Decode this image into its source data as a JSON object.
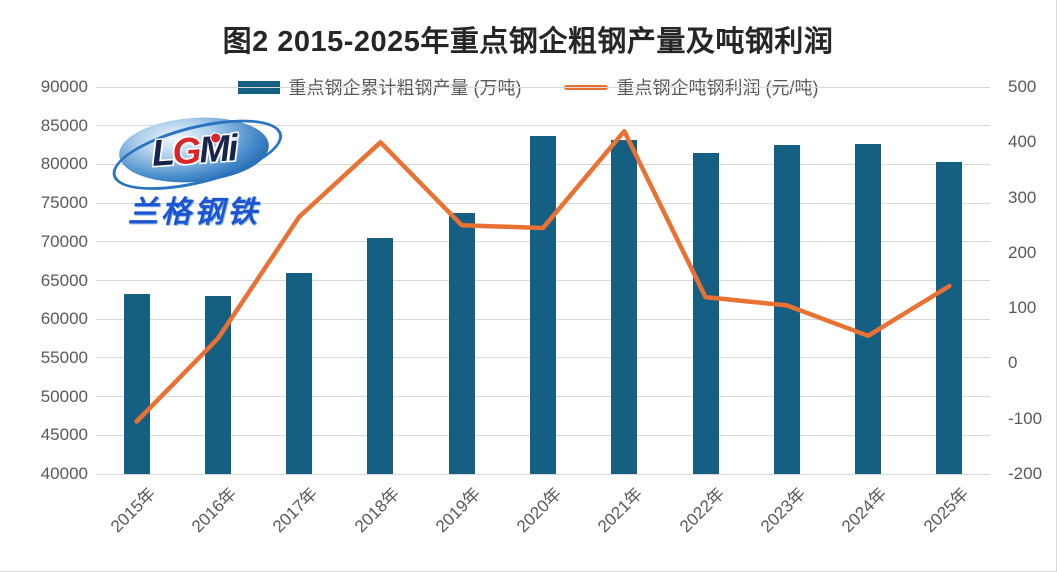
{
  "title": "图2 2015-2025年重点钢企粗钢产量及吨钢利润",
  "legend": [
    {
      "label": "重点钢企累计粗钢产量 (万吨)",
      "swatch": "bar",
      "color": "#156082"
    },
    {
      "label": "重点钢企吨钢利润 (元/吨)",
      "swatch": "line",
      "color": "#E97132"
    }
  ],
  "logo": {
    "latin_l": "L",
    "latin_g": "G",
    "latin_mi": "Mi",
    "chinese": "兰格钢铁"
  },
  "colors": {
    "bar": "#156082",
    "line": "#E97132",
    "grid": "#D9D9D9",
    "tick_text": "#595959",
    "title_text": "#262626"
  },
  "chart_data": {
    "type": "bar+line combo",
    "title": "图2 2015-2025年重点钢企粗钢产量及吨钢利润",
    "categories": [
      "2015年",
      "2016年",
      "2017年",
      "2018年",
      "2019年",
      "2020年",
      "2021年",
      "2022年",
      "2023年",
      "2024年",
      "2025年"
    ],
    "series": [
      {
        "name": "重点钢企累计粗钢产量 (万吨)",
        "type": "bar",
        "axis": "left",
        "color": "#156082",
        "values": [
          63300,
          63000,
          66000,
          70500,
          73700,
          83700,
          83200,
          81500,
          82500,
          82600,
          80300
        ]
      },
      {
        "name": "重点钢企吨钢利润 (元/吨)",
        "type": "line",
        "axis": "right",
        "color": "#E97132",
        "values": [
          -105,
          45,
          265,
          400,
          250,
          245,
          420,
          120,
          105,
          50,
          140
        ]
      }
    ],
    "left_axis": {
      "min": 40000,
      "max": 90000,
      "step": 5000,
      "ticks": [
        "90000",
        "85000",
        "80000",
        "75000",
        "70000",
        "65000",
        "60000",
        "55000",
        "50000",
        "45000",
        "40000"
      ]
    },
    "right_axis": {
      "min": -200,
      "max": 500,
      "step": 100,
      "ticks": [
        "500",
        "400",
        "300",
        "200",
        "100",
        "0",
        "-100",
        "-200"
      ]
    },
    "grid": "horizontal only",
    "legend_position": "top center",
    "x_label_rotation_deg": -45
  }
}
